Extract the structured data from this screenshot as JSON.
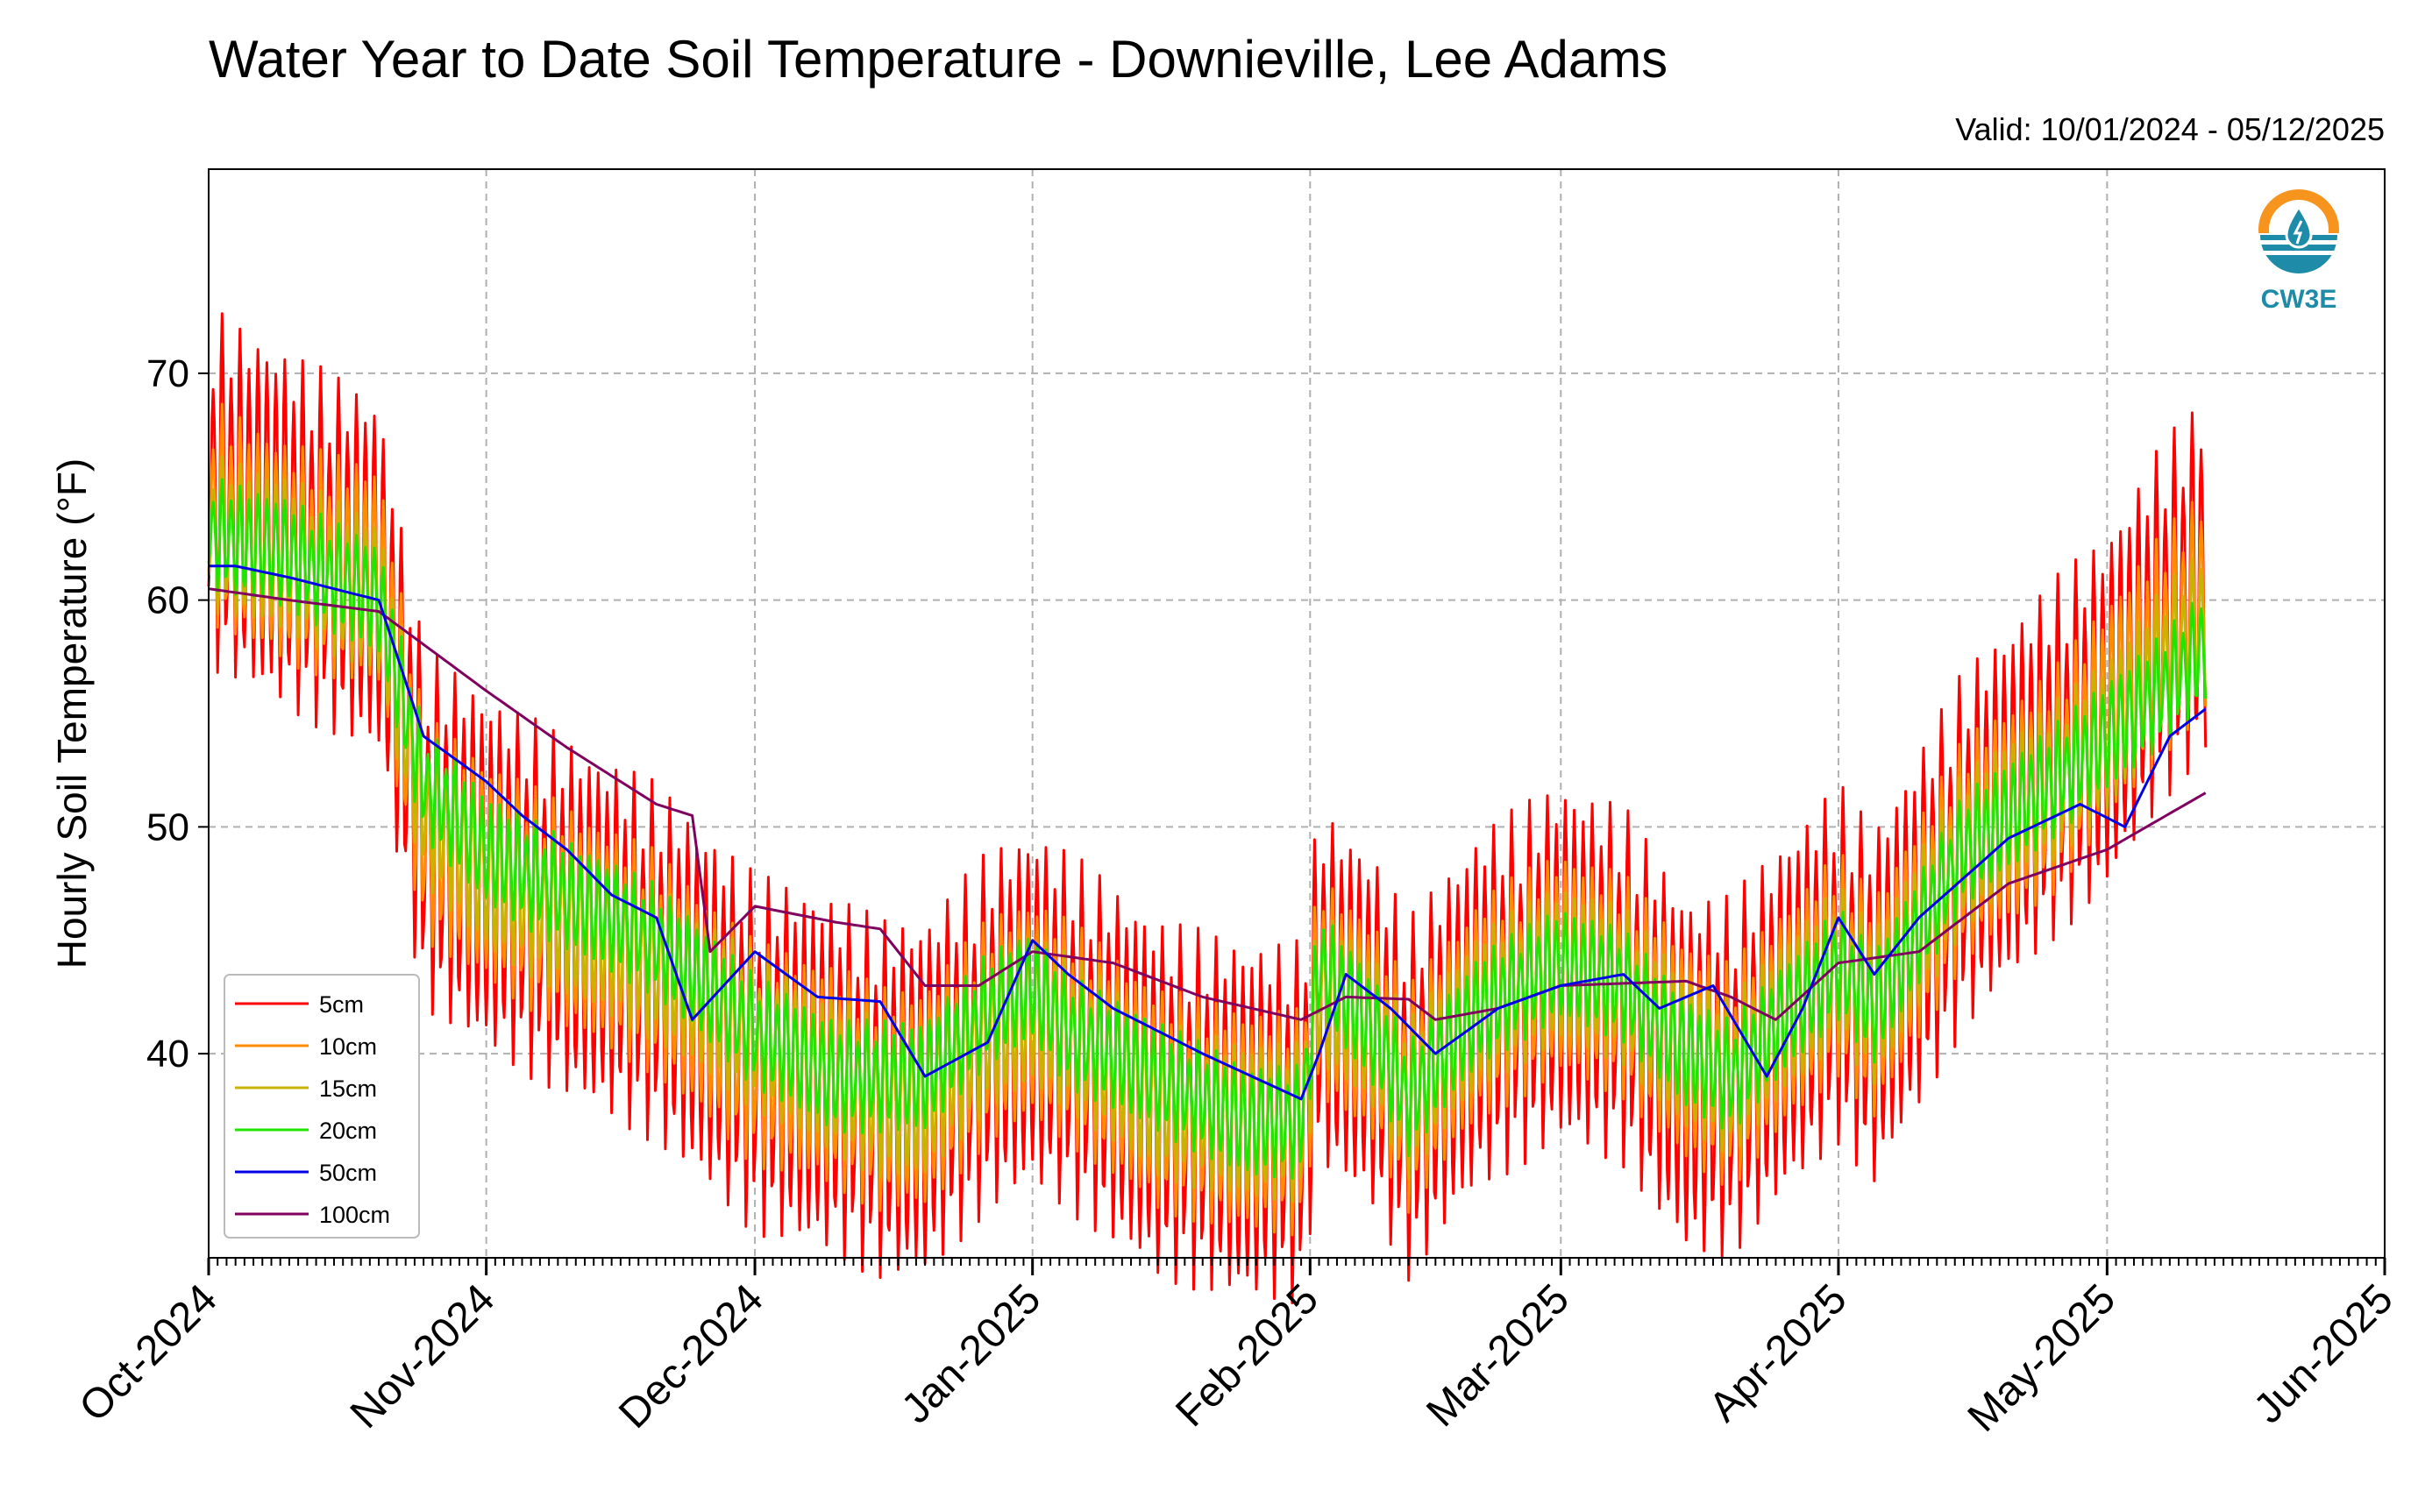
{
  "chart_data": {
    "type": "line",
    "title": "Water Year to Date Soil Temperature - Downieville, Lee Adams",
    "subtitle": "Valid: 10/01/2024 - 05/12/2025",
    "ylabel": "Hourly Soil Temperature (°F)",
    "xlabel": "",
    "ylim": [
      31,
      79
    ],
    "yticks": [
      40,
      50,
      60,
      70
    ],
    "xlim": [
      "2024-10-01",
      "2025-06-01"
    ],
    "xticks": [
      "Oct-2024",
      "Nov-2024",
      "Dec-2024",
      "Jan-2025",
      "Feb-2025",
      "Mar-2025",
      "Apr-2025",
      "May-2025",
      "Jun-2025"
    ],
    "xtick_dates": [
      "2024-10-01",
      "2024-11-01",
      "2024-12-01",
      "2025-01-01",
      "2025-02-01",
      "2025-03-01",
      "2025-04-01",
      "2025-05-01",
      "2025-06-01"
    ],
    "grid": true,
    "legend_position": "lower-left",
    "logo_text": "CW3E",
    "series": [
      {
        "name": "5cm",
        "color": "#ff0000",
        "diurnal_amplitude": 8,
        "x": [
          "2024-10-01",
          "2024-10-10",
          "2024-10-20",
          "2024-10-25",
          "2024-11-01",
          "2024-11-10",
          "2024-11-20",
          "2024-12-01",
          "2024-12-10",
          "2024-12-15",
          "2024-12-20",
          "2024-12-27",
          "2025-01-01",
          "2025-01-05",
          "2025-01-15",
          "2025-01-25",
          "2025-01-31",
          "2025-02-02",
          "2025-02-08",
          "2025-02-12",
          "2025-02-20",
          "2025-03-01",
          "2025-03-08",
          "2025-03-15",
          "2025-03-20",
          "2025-03-27",
          "2025-04-01",
          "2025-04-05",
          "2025-04-15",
          "2025-04-25",
          "2025-05-01",
          "2025-05-07",
          "2025-05-12"
        ],
        "y": [
          65,
          63,
          61,
          50,
          48,
          46,
          44,
          40,
          39,
          38,
          38,
          41,
          42,
          41,
          38,
          37,
          37,
          43,
          41,
          38,
          42,
          44,
          43,
          39,
          39,
          42,
          44,
          42,
          49,
          53,
          55,
          59,
          61
        ]
      },
      {
        "name": "10cm",
        "color": "#ff8c00",
        "diurnal_amplitude": 5,
        "x": [
          "2024-10-01",
          "2024-10-10",
          "2024-10-20",
          "2024-10-25",
          "2024-11-01",
          "2024-11-10",
          "2024-11-20",
          "2024-12-01",
          "2024-12-10",
          "2024-12-15",
          "2024-12-20",
          "2024-12-27",
          "2025-01-01",
          "2025-01-05",
          "2025-01-15",
          "2025-01-25",
          "2025-01-31",
          "2025-02-02",
          "2025-02-08",
          "2025-02-12",
          "2025-02-20",
          "2025-03-01",
          "2025-03-08",
          "2025-03-15",
          "2025-03-20",
          "2025-03-27",
          "2025-04-01",
          "2025-04-05",
          "2025-04-15",
          "2025-04-25",
          "2025-05-01",
          "2025-05-07",
          "2025-05-12"
        ],
        "y": [
          64,
          62,
          61,
          50,
          48,
          46,
          44,
          40,
          39,
          38,
          38,
          41,
          42,
          41,
          38,
          37,
          37,
          43,
          41,
          38,
          42,
          44,
          43,
          40,
          39,
          42,
          44,
          42,
          49,
          52,
          55,
          58,
          60
        ]
      },
      {
        "name": "15cm",
        "color": "#c8b400",
        "diurnal_amplitude": 3.5,
        "x": [
          "2024-10-01",
          "2024-10-10",
          "2024-10-20",
          "2024-10-25",
          "2024-11-01",
          "2024-11-10",
          "2024-11-20",
          "2024-12-01",
          "2024-12-10",
          "2024-12-15",
          "2024-12-20",
          "2024-12-27",
          "2025-01-01",
          "2025-01-05",
          "2025-01-15",
          "2025-01-25",
          "2025-01-31",
          "2025-02-02",
          "2025-02-08",
          "2025-02-12",
          "2025-02-20",
          "2025-03-01",
          "2025-03-08",
          "2025-03-15",
          "2025-03-20",
          "2025-03-27",
          "2025-04-01",
          "2025-04-05",
          "2025-04-15",
          "2025-04-25",
          "2025-05-01",
          "2025-05-07",
          "2025-05-12"
        ],
        "y": [
          63,
          62,
          60,
          51,
          48,
          46,
          44,
          41,
          39,
          38,
          38,
          41,
          42,
          41,
          38,
          37,
          37,
          43,
          41,
          38,
          42,
          44,
          43,
          40,
          39,
          42,
          44,
          42,
          49,
          52,
          54,
          57,
          59
        ]
      },
      {
        "name": "20cm",
        "color": "#22e400",
        "diurnal_amplitude": 2.5,
        "x": [
          "2024-10-01",
          "2024-10-10",
          "2024-10-20",
          "2024-10-25",
          "2024-11-01",
          "2024-11-10",
          "2024-11-20",
          "2024-12-01",
          "2024-12-10",
          "2024-12-15",
          "2024-12-20",
          "2024-12-27",
          "2025-01-01",
          "2025-01-05",
          "2025-01-15",
          "2025-01-25",
          "2025-01-31",
          "2025-02-02",
          "2025-02-08",
          "2025-02-12",
          "2025-02-20",
          "2025-03-01",
          "2025-03-08",
          "2025-03-15",
          "2025-03-20",
          "2025-03-27",
          "2025-04-01",
          "2025-04-05",
          "2025-04-15",
          "2025-04-25",
          "2025-05-01",
          "2025-05-07",
          "2025-05-12"
        ],
        "y": [
          63,
          62,
          60,
          52,
          49,
          47,
          45,
          41,
          39,
          39,
          39,
          42,
          43,
          41,
          39,
          37,
          37,
          44,
          41,
          38,
          42,
          44,
          43,
          40,
          39,
          42,
          44,
          42,
          49,
          52,
          54,
          56,
          58
        ]
      },
      {
        "name": "50cm",
        "color": "#0000e6",
        "diurnal_amplitude": 0,
        "x": [
          "2024-10-01",
          "2024-10-04",
          "2024-10-10",
          "2024-10-15",
          "2024-10-20",
          "2024-10-25",
          "2024-11-01",
          "2024-11-05",
          "2024-11-10",
          "2024-11-15",
          "2024-11-20",
          "2024-11-24",
          "2024-12-01",
          "2024-12-08",
          "2024-12-15",
          "2024-12-20",
          "2024-12-27",
          "2025-01-01",
          "2025-01-05",
          "2025-01-10",
          "2025-01-20",
          "2025-01-31",
          "2025-02-02",
          "2025-02-05",
          "2025-02-10",
          "2025-02-15",
          "2025-02-22",
          "2025-03-01",
          "2025-03-08",
          "2025-03-12",
          "2025-03-18",
          "2025-03-24",
          "2025-03-28",
          "2025-04-01",
          "2025-04-05",
          "2025-04-10",
          "2025-04-20",
          "2025-04-28",
          "2025-05-03",
          "2025-05-08",
          "2025-05-12"
        ],
        "y": [
          61.5,
          61.5,
          61,
          60.5,
          60,
          54,
          52,
          50.5,
          49,
          47,
          46,
          41.5,
          44.5,
          42.5,
          42.3,
          39,
          40.5,
          45,
          43.5,
          42,
          40,
          38,
          40,
          43.5,
          42,
          40,
          42,
          43,
          43.5,
          42,
          43,
          39,
          42,
          46,
          43.5,
          46,
          49.5,
          51,
          50,
          54,
          55.2
        ]
      },
      {
        "name": "100cm",
        "color": "#800060",
        "diurnal_amplitude": 0,
        "x": [
          "2024-10-01",
          "2024-10-10",
          "2024-10-20",
          "2024-11-01",
          "2024-11-10",
          "2024-11-20",
          "2024-11-24",
          "2024-11-26",
          "2024-12-01",
          "2024-12-10",
          "2024-12-15",
          "2024-12-20",
          "2024-12-26",
          "2025-01-01",
          "2025-01-10",
          "2025-01-20",
          "2025-01-31",
          "2025-02-05",
          "2025-02-12",
          "2025-02-15",
          "2025-02-22",
          "2025-03-01",
          "2025-03-15",
          "2025-03-20",
          "2025-03-25",
          "2025-04-01",
          "2025-04-10",
          "2025-04-20",
          "2025-05-01",
          "2025-05-12"
        ],
        "y": [
          60.5,
          60,
          59.5,
          56,
          53.5,
          51,
          50.5,
          44.5,
          46.5,
          45.8,
          45.5,
          43,
          43,
          44.5,
          44,
          42.5,
          41.5,
          42.5,
          42.4,
          41.5,
          42,
          43,
          43.2,
          42.5,
          41.5,
          44,
          44.5,
          47.5,
          49,
          51.5
        ]
      }
    ]
  }
}
